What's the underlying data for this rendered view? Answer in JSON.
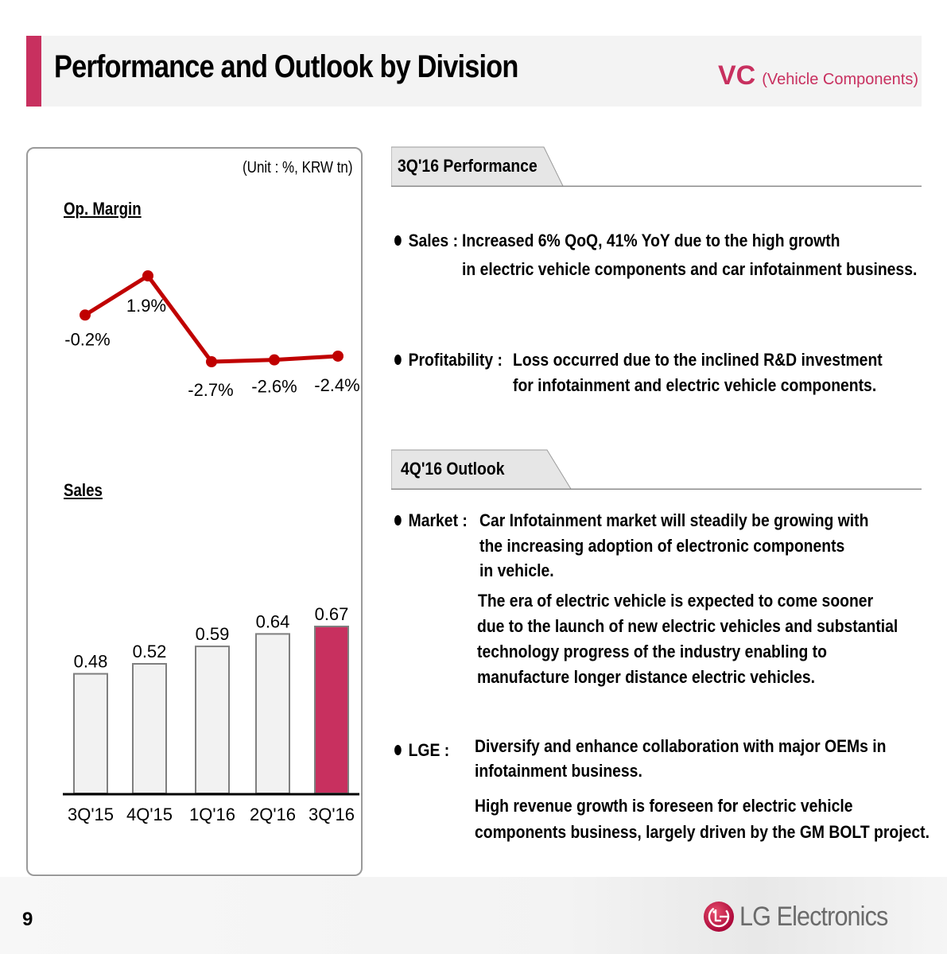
{
  "header": {
    "title": "Performance and Outlook by Division",
    "division_code": "VC",
    "division_name": "(Vehicle Components)",
    "accent_color": "#c8305f"
  },
  "chart_panel": {
    "unit": "(Unit : %, KRW tn)"
  },
  "chart_data": [
    {
      "type": "line",
      "title": "Op. Margin",
      "categories": [
        "3Q'15",
        "4Q'15",
        "1Q'16",
        "2Q'16",
        "3Q'16"
      ],
      "values": [
        -0.2,
        1.9,
        -2.7,
        -2.6,
        -2.4
      ],
      "labels": [
        "-0.2%",
        "1.9%",
        "-2.7%",
        "-2.6%",
        "-2.4%"
      ],
      "unit": "%",
      "color": "#c00000",
      "grid": false
    },
    {
      "type": "bar",
      "title": "Sales",
      "categories": [
        "3Q'15",
        "4Q'15",
        "1Q'16",
        "2Q'16",
        "3Q'16"
      ],
      "values": [
        0.48,
        0.52,
        0.59,
        0.64,
        0.67
      ],
      "labels": [
        "0.48",
        "0.52",
        "0.59",
        "0.64",
        "0.67"
      ],
      "unit": "KRW tn",
      "bar_color": "#f2f2f2",
      "highlight_color": "#c8305f",
      "highlight_index": 4,
      "grid": false
    }
  ],
  "performance": {
    "tab_label": "3Q'16 Performance",
    "items": [
      {
        "label": "Sales :",
        "lines": [
          "Increased 6% QoQ, 41% YoY due to the high growth",
          "in electric vehicle components and car infotainment business."
        ]
      },
      {
        "label": "Profitability :",
        "lines": [
          "Loss occurred due to the inclined R&D investment",
          "for infotainment and electric vehicle components."
        ]
      }
    ]
  },
  "outlook": {
    "tab_label": "4Q'16 Outlook",
    "items": [
      {
        "label": "Market :",
        "lines": [
          "Car Infotainment market will steadily be growing with",
          "the increasing adoption of electronic components",
          "in vehicle.",
          "The era of electric vehicle is expected to come sooner",
          "due to the launch of new electric vehicles and substantial",
          "technology progress of the industry enabling to",
          "manufacture longer distance electric vehicles."
        ]
      },
      {
        "label": "LGE :",
        "lines": [
          "Diversify and enhance collaboration with major OEMs in",
          "infotainment business.",
          "High revenue growth is foreseen for electric vehicle",
          "components business, largely driven by the GM BOLT project."
        ]
      }
    ]
  },
  "footer": {
    "page_number": "9",
    "logo_text": "LG Electronics",
    "logo_icon": "lg-face-logo-icon"
  }
}
